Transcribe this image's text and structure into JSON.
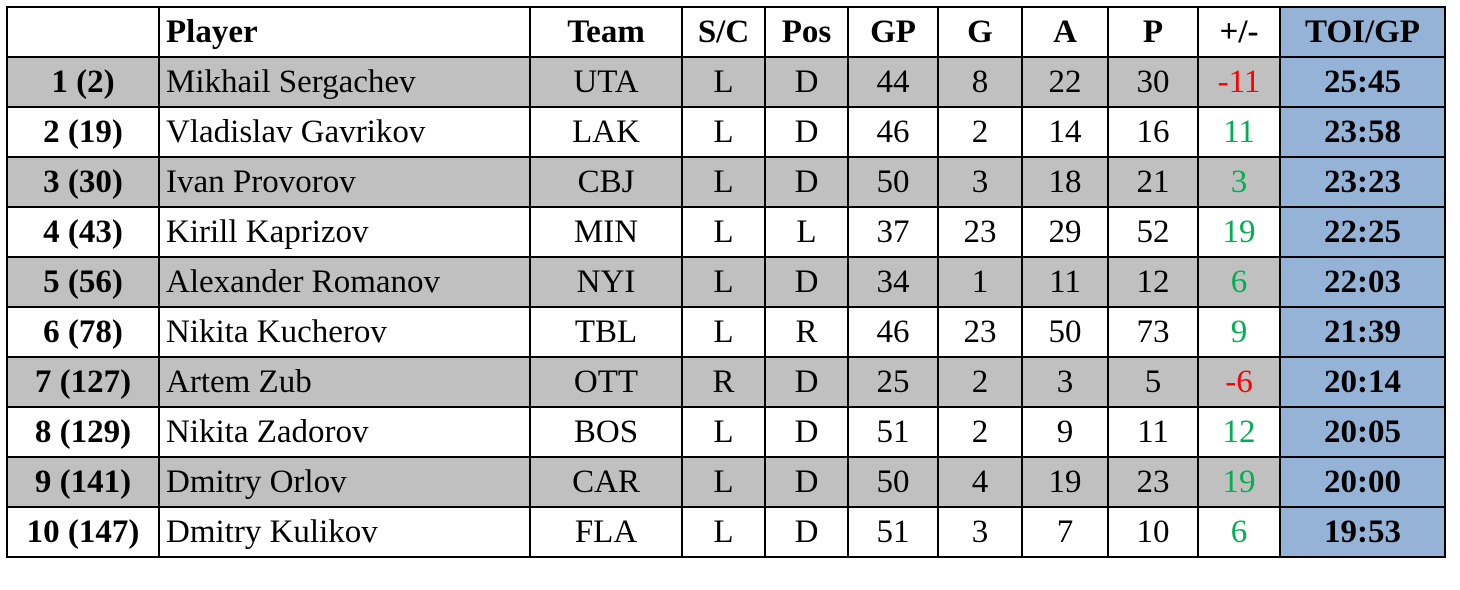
{
  "table": {
    "columns": [
      "",
      "Player",
      "Team",
      "S/C",
      "Pos",
      "GP",
      "G",
      "A",
      "P",
      "+/-",
      "TOI/GP"
    ],
    "rows": [
      {
        "rank": "1 (2)",
        "player": "Mikhail Sergachev",
        "team": "UTA",
        "sc": "L",
        "pos": "D",
        "gp": "44",
        "g": "8",
        "a": "22",
        "p": "30",
        "pm": "-11",
        "toi": "25:45"
      },
      {
        "rank": "2 (19)",
        "player": "Vladislav Gavrikov",
        "team": "LAK",
        "sc": "L",
        "pos": "D",
        "gp": "46",
        "g": "2",
        "a": "14",
        "p": "16",
        "pm": "11",
        "toi": "23:58"
      },
      {
        "rank": "3 (30)",
        "player": "Ivan Provorov",
        "team": "CBJ",
        "sc": "L",
        "pos": "D",
        "gp": "50",
        "g": "3",
        "a": "18",
        "p": "21",
        "pm": "3",
        "toi": "23:23"
      },
      {
        "rank": "4 (43)",
        "player": "Kirill Kaprizov",
        "team": "MIN",
        "sc": "L",
        "pos": "L",
        "gp": "37",
        "g": "23",
        "a": "29",
        "p": "52",
        "pm": "19",
        "toi": "22:25"
      },
      {
        "rank": "5 (56)",
        "player": "Alexander Romanov",
        "team": "NYI",
        "sc": "L",
        "pos": "D",
        "gp": "34",
        "g": "1",
        "a": "11",
        "p": "12",
        "pm": "6",
        "toi": "22:03"
      },
      {
        "rank": "6 (78)",
        "player": "Nikita Kucherov",
        "team": "TBL",
        "sc": "L",
        "pos": "R",
        "gp": "46",
        "g": "23",
        "a": "50",
        "p": "73",
        "pm": "9",
        "toi": "21:39"
      },
      {
        "rank": "7 (127)",
        "player": "Artem Zub",
        "team": "OTT",
        "sc": "R",
        "pos": "D",
        "gp": "25",
        "g": "2",
        "a": "3",
        "p": "5",
        "pm": "-6",
        "toi": "20:14"
      },
      {
        "rank": "8 (129)",
        "player": "Nikita Zadorov",
        "team": "BOS",
        "sc": "L",
        "pos": "D",
        "gp": "51",
        "g": "2",
        "a": "9",
        "p": "11",
        "pm": "12",
        "toi": "20:05"
      },
      {
        "rank": "9 (141)",
        "player": "Dmitry Orlov",
        "team": "CAR",
        "sc": "L",
        "pos": "D",
        "gp": "50",
        "g": "4",
        "a": "19",
        "p": "23",
        "pm": "19",
        "toi": "20:00"
      },
      {
        "rank": "10 (147)",
        "player": "Dmitry Kulikov",
        "team": "FLA",
        "sc": "L",
        "pos": "D",
        "gp": "51",
        "g": "3",
        "a": "7",
        "p": "10",
        "pm": "6",
        "toi": "19:53"
      }
    ]
  },
  "colors": {
    "shaded_row": "#c0c0c0",
    "toi_highlight": "#95b3d7",
    "negative": "#ff0000",
    "positive": "#00b050"
  }
}
